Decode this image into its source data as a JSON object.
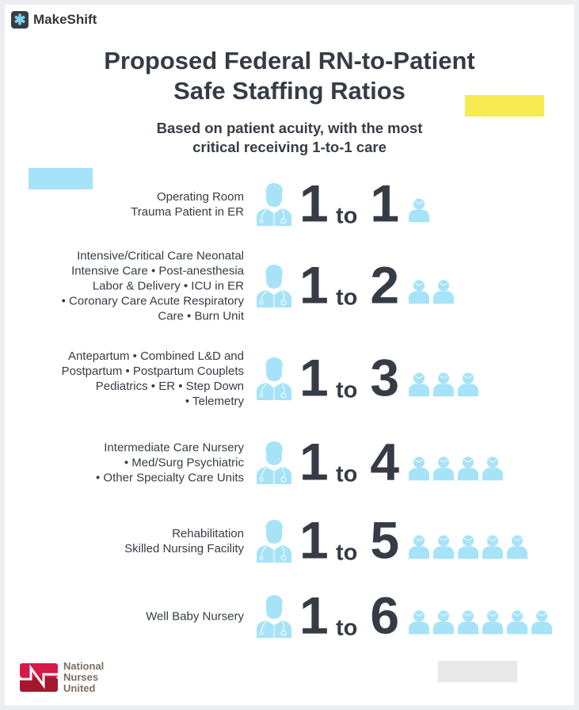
{
  "brand": {
    "name": "MakeShift",
    "icon": "asterisk-logo-icon"
  },
  "title": [
    "Proposed Federal RN-to-Patient",
    "Safe Staffing Ratios"
  ],
  "subtitle": [
    "Based on patient acuity, with the most",
    "critical receiving 1-to-1 care"
  ],
  "colors": {
    "text": "#363c45",
    "icon": "#a6e3f8",
    "yellow": "#f5ea4f",
    "gray": "#e8e8e8",
    "nnu_red": "#c8193c"
  },
  "rows": [
    {
      "lines": [
        "Operating Room",
        "Trauma Patient in ER"
      ],
      "nurses": "1",
      "connector": "to",
      "patients": "1",
      "count": 1
    },
    {
      "lines": [
        "Intensive/Critical Care Neonatal",
        "Intensive Care • Post-anesthesia",
        "Labor & Delivery • ICU in ER",
        "• Coronary Care Acute Respiratory",
        "Care • Burn Unit"
      ],
      "nurses": "1",
      "connector": "to",
      "patients": "2",
      "count": 2
    },
    {
      "lines": [
        "Antepartum • Combined L&D and",
        "Postpartum  • Postpartum Couplets",
        "Pediatrics • ER • Step Down",
        "• Telemetry"
      ],
      "nurses": "1",
      "connector": "to",
      "patients": "3",
      "count": 3
    },
    {
      "lines": [
        "Intermediate Care Nursery",
        "• Med/Surg Psychiatric",
        "• Other Specialty Care Units"
      ],
      "nurses": "1",
      "connector": "to",
      "patients": "4",
      "count": 4
    },
    {
      "lines": [
        "Rehabilitation",
        "Skilled Nursing Facility"
      ],
      "nurses": "1",
      "connector": "to",
      "patients": "5",
      "count": 5
    },
    {
      "lines": [
        "Well Baby Nursery"
      ],
      "nurses": "1",
      "connector": "to",
      "patients": "6",
      "count": 6
    }
  ],
  "footer": {
    "org_lines": [
      "National",
      "Nurses",
      "United"
    ]
  }
}
